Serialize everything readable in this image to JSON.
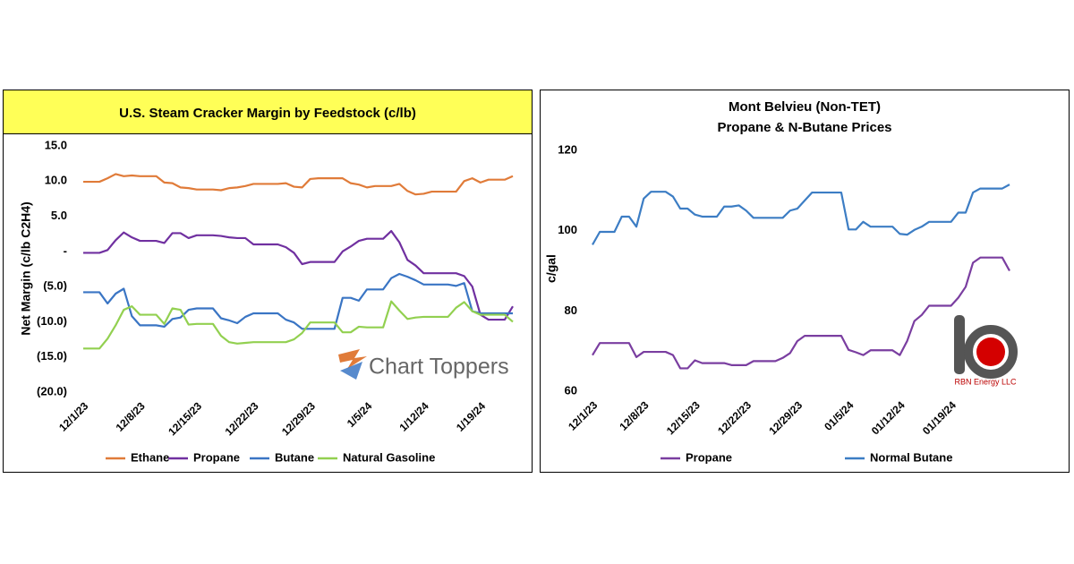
{
  "chart_data": [
    {
      "type": "line",
      "title": "U.S. Steam Cracker Margin by Feedstock (c/lb)",
      "ylabel": "Net Margin (c/lb C2H4)",
      "watermark": "Chart Toppers",
      "legend": "bottom",
      "categories": [
        "12/1/23",
        null,
        null,
        null,
        null,
        null,
        null,
        "12/8/23",
        null,
        null,
        null,
        null,
        null,
        null,
        "12/15/23",
        null,
        null,
        null,
        null,
        null,
        null,
        "12/22/23",
        null,
        null,
        null,
        null,
        null,
        null,
        "12/29/23",
        null,
        null,
        null,
        null,
        null,
        null,
        "1/5/24",
        null,
        null,
        null,
        null,
        null,
        null,
        "1/12/24",
        null,
        null,
        null,
        null,
        null,
        null,
        "1/19/24",
        null,
        null,
        null,
        null
      ],
      "ylim": [
        -20,
        15
      ],
      "yticks": [
        {
          "value": 15,
          "label": "15.0"
        },
        {
          "value": 10,
          "label": "10.0"
        },
        {
          "value": 5,
          "label": "5.0"
        },
        {
          "value": 0,
          "label": "-"
        },
        {
          "value": -5,
          "label": "(5.0)"
        },
        {
          "value": -10,
          "label": "(10.0)"
        },
        {
          "value": -15,
          "label": "(15.0)"
        },
        {
          "value": -20,
          "label": "(20.0)"
        }
      ],
      "series": [
        {
          "name": "Ethane",
          "color": "#e07b39",
          "values": [
            9.9,
            9.9,
            9.9,
            10.4,
            11.0,
            10.7,
            10.8,
            10.7,
            10.7,
            10.7,
            9.8,
            9.7,
            9.1,
            9.0,
            8.8,
            8.8,
            8.8,
            8.7,
            9.0,
            9.1,
            9.3,
            9.6,
            9.6,
            9.6,
            9.6,
            9.7,
            9.2,
            9.1,
            10.3,
            10.4,
            10.4,
            10.4,
            10.4,
            9.7,
            9.5,
            9.1,
            9.3,
            9.3,
            9.3,
            9.6,
            8.6,
            8.1,
            8.2,
            8.5,
            8.5,
            8.5,
            8.5,
            10.0,
            10.4,
            9.8,
            10.2,
            10.2,
            10.2,
            10.7
          ]
        },
        {
          "name": "Propane",
          "color": "#7030a0",
          "values": [
            -0.2,
            -0.2,
            -0.2,
            0.2,
            1.6,
            2.7,
            2.0,
            1.5,
            1.5,
            1.5,
            1.2,
            2.6,
            2.6,
            1.9,
            2.3,
            2.3,
            2.3,
            2.2,
            2.0,
            1.9,
            1.9,
            1.0,
            1.0,
            1.0,
            1.0,
            0.6,
            -0.2,
            -1.8,
            -1.5,
            -1.5,
            -1.5,
            -1.5,
            0,
            0.7,
            1.5,
            1.8,
            1.8,
            1.8,
            2.9,
            1.3,
            -1.2,
            -2.0,
            -3.1,
            -3.1,
            -3.1,
            -3.1,
            -3.1,
            -3.5,
            -5.0,
            -9.0,
            -9.7,
            -9.7,
            -9.7,
            -7.8
          ]
        },
        {
          "name": "Butane",
          "color": "#3a75c4",
          "values": [
            -5.8,
            -5.8,
            -5.8,
            -7.4,
            -6.0,
            -5.3,
            -9.2,
            -10.5,
            -10.5,
            -10.5,
            -10.7,
            -9.6,
            -9.4,
            -8.3,
            -8.1,
            -8.1,
            -8.1,
            -9.5,
            -9.8,
            -10.2,
            -9.3,
            -8.8,
            -8.8,
            -8.8,
            -8.8,
            -9.7,
            -10.1,
            -11.0,
            -11.0,
            -11.0,
            -11.0,
            -11.0,
            -6.6,
            -6.6,
            -7.0,
            -5.4,
            -5.4,
            -5.4,
            -3.8,
            -3.2,
            -3.6,
            -4.1,
            -4.7,
            -4.7,
            -4.7,
            -4.7,
            -4.9,
            -4.5,
            -8.5,
            -8.8,
            -8.8,
            -8.8,
            -8.8,
            -8.8
          ]
        },
        {
          "name": "Natural Gasoline",
          "color": "#92d050",
          "values": [
            -13.8,
            -13.8,
            -13.8,
            -12.4,
            -10.5,
            -8.3,
            -7.8,
            -9.0,
            -9.0,
            -9.0,
            -10.3,
            -8.1,
            -8.3,
            -10.4,
            -10.3,
            -10.3,
            -10.3,
            -12.0,
            -12.9,
            -13.1,
            -13.0,
            -12.9,
            -12.9,
            -12.9,
            -12.9,
            -12.9,
            -12.5,
            -11.6,
            -10.1,
            -10.1,
            -10.1,
            -10.1,
            -11.5,
            -11.5,
            -10.7,
            -10.8,
            -10.8,
            -10.8,
            -7.1,
            -8.4,
            -9.6,
            -9.4,
            -9.3,
            -9.3,
            -9.3,
            -9.3,
            -8.0,
            -7.2,
            -8.5,
            -9.0,
            -9.0,
            -9.0,
            -9.0,
            -10.0
          ]
        }
      ]
    },
    {
      "type": "line",
      "title": "Mont Belvieu (Non-TET)",
      "subtitle": "Propane & N-Butane Prices",
      "ylabel": "c/gal",
      "watermark": "RBN Energy LLC",
      "legend": "bottom",
      "categories": [
        "12/1/23",
        null,
        null,
        null,
        null,
        null,
        null,
        "12/8/23",
        null,
        null,
        null,
        null,
        null,
        null,
        "12/15/23",
        null,
        null,
        null,
        null,
        null,
        null,
        "12/22/23",
        null,
        null,
        null,
        null,
        null,
        null,
        "12/29/23",
        null,
        null,
        null,
        null,
        null,
        null,
        "01/5/24",
        null,
        null,
        null,
        null,
        null,
        null,
        "01/12/24",
        null,
        null,
        null,
        null,
        null,
        null,
        "01/19/24",
        null,
        null,
        null,
        null,
        null,
        null,
        null,
        null
      ],
      "ylim": [
        60,
        120
      ],
      "yticks": [
        60,
        80,
        100,
        120
      ],
      "series": [
        {
          "name": "Propane",
          "color": "#7a3ea0",
          "values": [
            69,
            72,
            72,
            72,
            72,
            72,
            68.5,
            69.8,
            69.8,
            69.8,
            69.8,
            69,
            65.7,
            65.7,
            67.7,
            67,
            67,
            67,
            67,
            66.5,
            66.5,
            66.5,
            67.5,
            67.5,
            67.5,
            67.5,
            68.3,
            69.5,
            72.5,
            73.8,
            73.8,
            73.8,
            73.8,
            73.8,
            73.8,
            70.3,
            69.7,
            69,
            70.2,
            70.2,
            70.2,
            70.2,
            69,
            72.5,
            77.5,
            79,
            81.3,
            81.3,
            81.3,
            81.3,
            83.3,
            86,
            92,
            93.3,
            93.3,
            93.3,
            93.3,
            90
          ]
        },
        {
          "name": "Normal Butane",
          "color": "#3c7dc4",
          "values": [
            96.5,
            99.7,
            99.7,
            99.7,
            103.5,
            103.5,
            101,
            108,
            109.7,
            109.7,
            109.7,
            108.5,
            105.5,
            105.5,
            104,
            103.5,
            103.5,
            103.5,
            106,
            106,
            106.3,
            105,
            103.2,
            103.2,
            103.2,
            103.2,
            103.2,
            105,
            105.5,
            107.5,
            109.5,
            109.5,
            109.5,
            109.5,
            109.5,
            100.3,
            100.3,
            102.2,
            101,
            101,
            101,
            101,
            99.2,
            99,
            100.2,
            101,
            102.2,
            102.2,
            102.2,
            102.2,
            104.5,
            104.5,
            109.5,
            110.5,
            110.5,
            110.5,
            110.5,
            111.5
          ]
        }
      ]
    }
  ]
}
